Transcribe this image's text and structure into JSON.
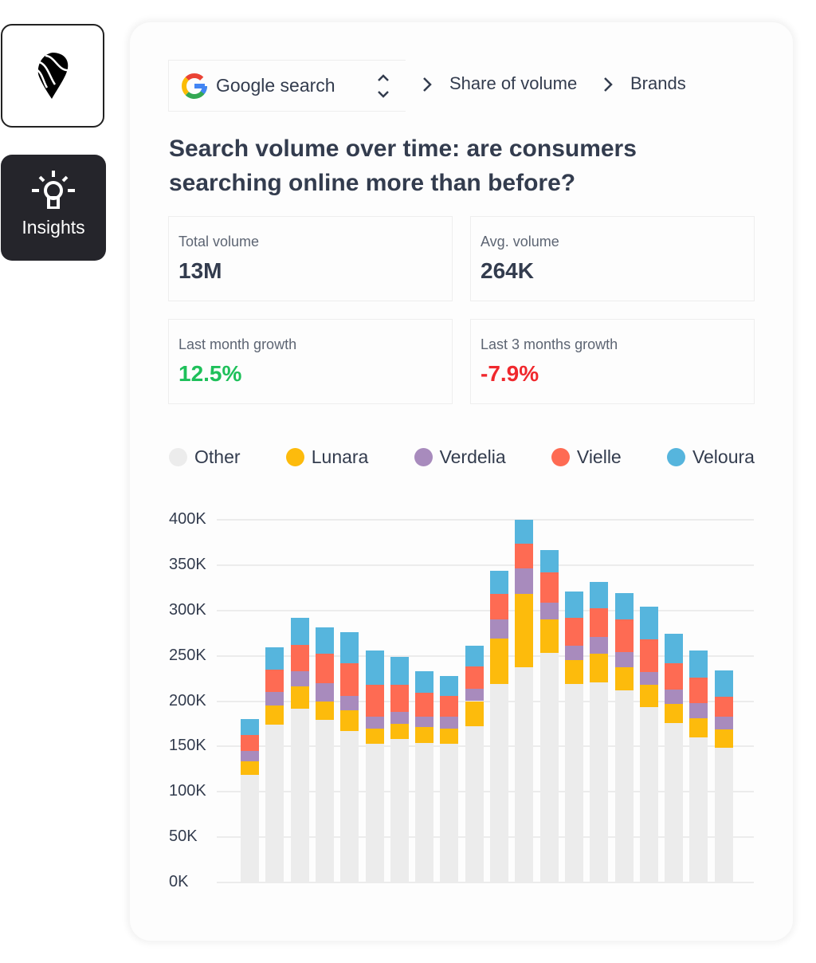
{
  "sidebar": {
    "logo_icon": "map-pin-logo",
    "insights_label": "Insights",
    "insights_icon": "lightbulb-icon"
  },
  "header": {
    "source_label": "Google search",
    "breadcrumbs": [
      "Share of volume",
      "Brands"
    ]
  },
  "title": "Search volume over time: are consumers searching online more than before?",
  "stats": [
    {
      "label": "Total volume",
      "value": "13M",
      "color": "#333c4e"
    },
    {
      "label": "Avg. volume",
      "value": "264K",
      "color": "#333c4e"
    },
    {
      "label": "Last month growth",
      "value": "12.5%",
      "color": "#1ec05a"
    },
    {
      "label": "Last 3 months growth",
      "value": "-7.9%",
      "color": "#f0282d"
    }
  ],
  "chart_data": {
    "type": "bar",
    "stacked": true,
    "ylim": [
      0,
      400
    ],
    "yticks": [
      "0K",
      "50K",
      "100K",
      "150K",
      "200K",
      "250K",
      "300K",
      "350K",
      "400K"
    ],
    "grid": true,
    "legend_placement": "top",
    "series": [
      {
        "name": "Other",
        "color": "#ececec",
        "values": [
          119,
          174,
          192,
          179,
          167,
          153,
          158,
          154,
          153,
          172,
          219,
          237,
          253,
          219,
          221,
          212,
          193,
          176,
          160,
          149
        ]
      },
      {
        "name": "Lunara",
        "color": "#fdbb0c",
        "values": [
          15,
          21,
          24,
          21,
          23,
          17,
          17,
          17,
          17,
          28,
          50,
          81,
          37,
          26,
          31,
          25,
          25,
          21,
          21,
          20
        ]
      },
      {
        "name": "Verdelia",
        "color": "#a88bbd",
        "values": [
          11,
          15,
          17,
          20,
          16,
          13,
          13,
          12,
          13,
          14,
          21,
          28,
          19,
          16,
          19,
          17,
          14,
          16,
          17,
          14
        ]
      },
      {
        "name": "Vielle",
        "color": "#fe6b53",
        "values": [
          18,
          25,
          29,
          32,
          36,
          35,
          30,
          26,
          23,
          24,
          28,
          28,
          33,
          31,
          31,
          36,
          36,
          29,
          28,
          22
        ]
      },
      {
        "name": "Veloura",
        "color": "#56b5dd",
        "values": [
          17,
          24,
          30,
          29,
          34,
          38,
          31,
          24,
          22,
          23,
          26,
          26,
          25,
          29,
          29,
          29,
          36,
          32,
          30,
          29
        ]
      }
    ]
  }
}
